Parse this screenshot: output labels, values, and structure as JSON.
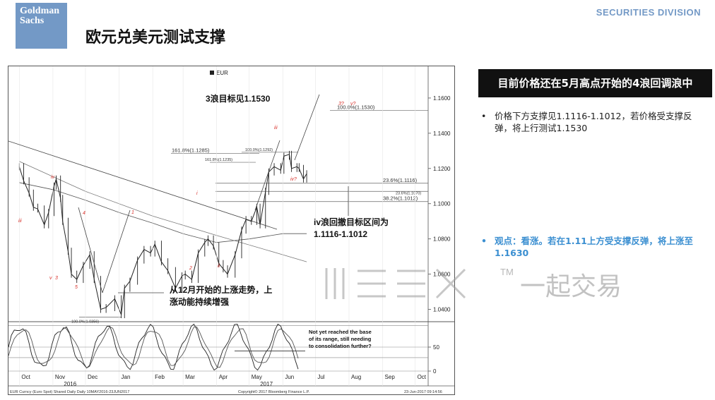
{
  "header": {
    "logo_line1": "Goldman",
    "logo_line2": "Sachs",
    "division": "SECURITIES DIVISION",
    "title": "欧元兑美元测试支撑"
  },
  "colors": {
    "brand": "#7399c6",
    "price": "#222222",
    "annotation_red": "#d8312a",
    "bullet_blue": "#3b8fd1"
  },
  "chart_data": {
    "type": "line",
    "legend": "EUR",
    "footer_left": "EUR Curncy (Euro Spot) Shared Daily  Daily 10MAY2016-23JUN2017",
    "footer_center": "Copyright© 2017 Bloomberg Finance L.P.",
    "footer_right": "23-Jun-2017 09:14:56",
    "x_ticks": [
      "Oct",
      "Nov",
      "Dec",
      "Jan",
      "Feb",
      "Mar",
      "Apr",
      "May",
      "Jun",
      "Jul",
      "Aug",
      "Sep",
      "Oct"
    ],
    "year_labels": [
      "2016",
      "2017"
    ],
    "y_ticks": [
      1.04,
      1.06,
      1.08,
      1.1,
      1.12,
      1.14,
      1.16
    ],
    "y_tick_labels": [
      "1.0400",
      "1.0600",
      "1.0800",
      "1.1000",
      "1.1200",
      "1.1400",
      "1.1600"
    ],
    "ylim": [
      1.033,
      1.178
    ],
    "osc_ticks": [
      0,
      50
    ],
    "series": [
      {
        "values": [
          [
            "2016-10-01",
            1.121
          ],
          [
            "2016-10-05",
            1.113
          ],
          [
            "2016-10-10",
            1.106
          ],
          [
            "2016-10-14",
            1.098
          ],
          [
            "2016-10-18",
            1.097
          ],
          [
            "2016-10-24",
            1.088
          ],
          [
            "2016-10-28",
            1.095
          ],
          [
            "2016-11-02",
            1.11
          ],
          [
            "2016-11-04",
            1.114
          ],
          [
            "2016-11-08",
            1.103
          ],
          [
            "2016-11-10",
            1.09
          ],
          [
            "2016-11-15",
            1.073
          ],
          [
            "2016-11-18",
            1.06
          ],
          [
            "2016-11-23",
            1.057
          ],
          [
            "2016-11-29",
            1.065
          ],
          [
            "2016-12-05",
            1.071
          ],
          [
            "2016-12-09",
            1.057
          ],
          [
            "2016-12-15",
            1.04
          ],
          [
            "2016-12-20",
            1.041
          ],
          [
            "2016-12-28",
            1.046
          ],
          [
            "2017-01-03",
            1.037
          ],
          [
            "2017-01-06",
            1.052
          ],
          [
            "2017-01-11",
            1.056
          ],
          [
            "2017-01-18",
            1.068
          ],
          [
            "2017-01-24",
            1.074
          ],
          [
            "2017-01-30",
            1.072
          ],
          [
            "2017-02-03",
            1.077
          ],
          [
            "2017-02-09",
            1.067
          ],
          [
            "2017-02-15",
            1.062
          ],
          [
            "2017-02-22",
            1.052
          ],
          [
            "2017-02-28",
            1.059
          ],
          [
            "2017-03-03",
            1.06
          ],
          [
            "2017-03-09",
            1.057
          ],
          [
            "2017-03-15",
            1.072
          ],
          [
            "2017-03-21",
            1.078
          ],
          [
            "2017-03-24",
            1.08
          ],
          [
            "2017-03-29",
            1.076
          ],
          [
            "2017-04-03",
            1.066
          ],
          [
            "2017-04-07",
            1.063
          ],
          [
            "2017-04-11",
            1.06
          ],
          [
            "2017-04-18",
            1.071
          ],
          [
            "2017-04-24",
            1.085
          ],
          [
            "2017-04-28",
            1.091
          ],
          [
            "2017-05-03",
            1.09
          ],
          [
            "2017-05-08",
            1.098
          ],
          [
            "2017-05-11",
            1.088
          ],
          [
            "2017-05-16",
            1.107
          ],
          [
            "2017-05-19",
            1.118
          ],
          [
            "2017-05-24",
            1.121
          ],
          [
            "2017-05-30",
            1.119
          ],
          [
            "2017-06-02",
            1.127
          ],
          [
            "2017-06-07",
            1.128
          ],
          [
            "2017-06-09",
            1.12
          ],
          [
            "2017-06-14",
            1.121
          ],
          [
            "2017-06-16",
            1.12
          ],
          [
            "2017-06-20",
            1.114
          ],
          [
            "2017-06-23",
            1.117
          ]
        ]
      },
      {
        "values": [
          [
            "2016-10-01",
            1.112
          ],
          [
            "2016-11-01",
            1.108
          ],
          [
            "2016-12-01",
            1.102
          ],
          [
            "2017-01-01",
            1.095
          ],
          [
            "2017-02-01",
            1.089
          ],
          [
            "2017-03-01",
            1.083
          ],
          [
            "2017-04-01",
            1.078
          ],
          [
            "2017-05-01",
            1.08
          ],
          [
            "2017-06-01",
            1.083
          ],
          [
            "2017-06-23",
            1.083
          ]
        ]
      },
      {
        "values": [
          [
            "2016-10-01",
            1.124
          ],
          [
            "2016-12-01",
            1.107
          ],
          [
            "2017-02-01",
            1.093
          ],
          [
            "2017-04-01",
            1.082
          ],
          [
            "2017-06-01",
            1.071
          ],
          [
            "2017-06-23",
            1.067
          ]
        ]
      }
    ],
    "fib_lines": [
      {
        "label": "100.0%(1.1530)",
        "value": 1.153
      },
      {
        "label": "161.8%(1.1285)",
        "value": 1.1285
      },
      {
        "label": "100.0%(1.1292)",
        "value": 1.1292
      },
      {
        "label": "161.8%(1.1235)",
        "value": 1.1235
      },
      {
        "label": "23.6%(1.1116)",
        "value": 1.1116
      },
      {
        "label": "23.6%(1.1070)",
        "value": 1.107
      },
      {
        "label": "38.2%(1.1012)",
        "value": 1.1012
      },
      {
        "label": "100.0%(1.0356)",
        "value": 1.0356
      }
    ],
    "wave_labels": [
      "iii",
      "iv",
      "v",
      "3",
      "4",
      "5",
      "1",
      "2",
      "i",
      "ii",
      "iii",
      "iv?",
      "3?",
      "v?"
    ],
    "annotations": [
      "3浪目标见1.1530",
      "iv浪回撤目标区间为",
      "1.1116-1.1012",
      "从12月开始的上涨走势，上",
      "涨动能持续增强",
      "Not yet reached the base",
      "of its range, still needing",
      "to consolidation further?"
    ]
  },
  "panel": {
    "title": "目前价格还在5月高点开始的4浪回调浪中",
    "bullet1": "价格下方支撑见1.1116-1.1012，若价格受支撑反弹，将上行测试1.1530",
    "bullet2": "观点：看涨。若在1.11上方受支撑反弹，将上涨至1.1630"
  },
  "watermark": {
    "tm": "TM",
    "text": "一起交易"
  }
}
